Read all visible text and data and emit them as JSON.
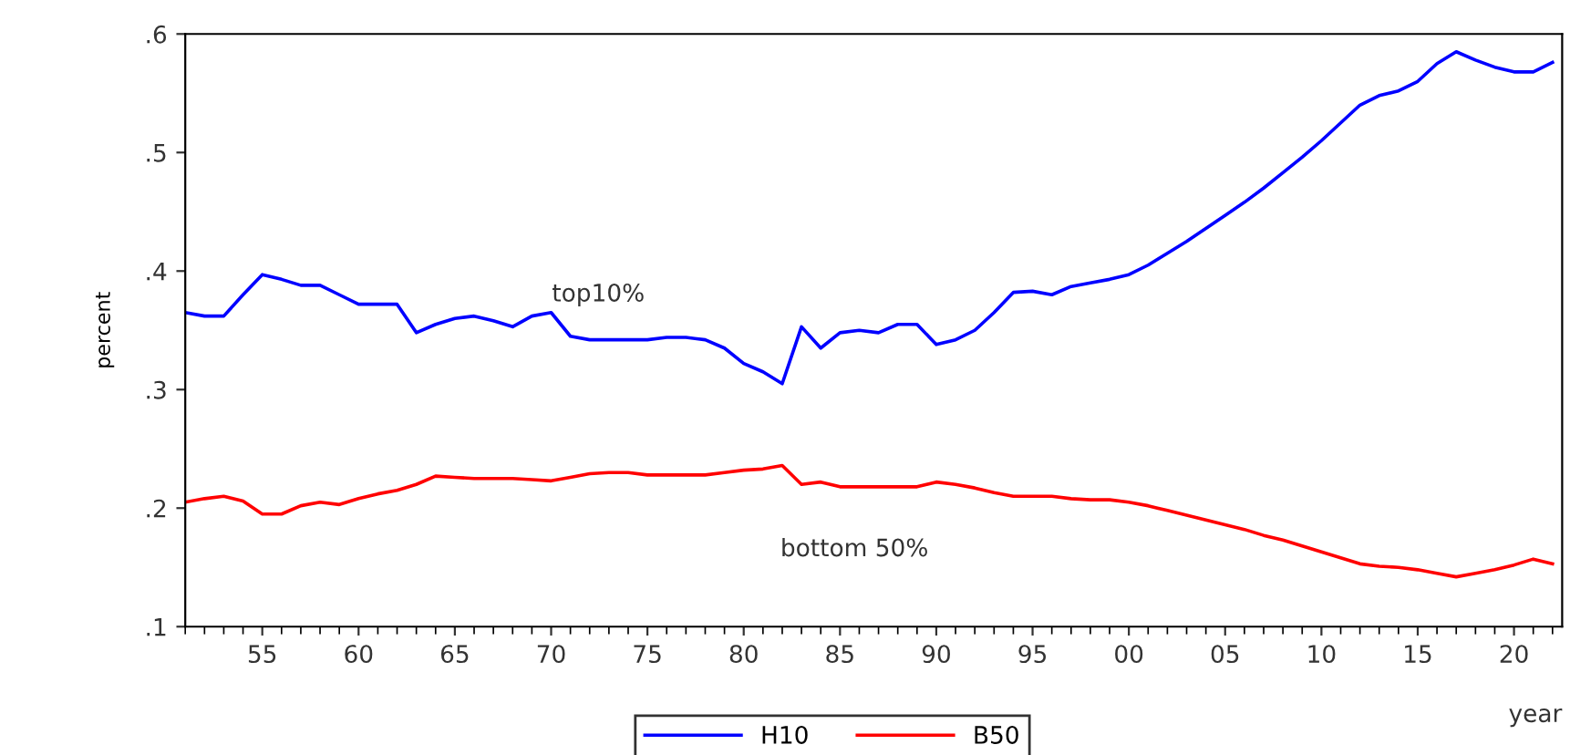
{
  "chart_data": {
    "type": "line",
    "xlabel": "year",
    "ylabel": "percent",
    "x": [
      1951,
      1952,
      1953,
      1954,
      1955,
      1956,
      1957,
      1958,
      1959,
      1960,
      1961,
      1962,
      1963,
      1964,
      1965,
      1966,
      1967,
      1968,
      1969,
      1970,
      1971,
      1972,
      1973,
      1974,
      1975,
      1976,
      1977,
      1978,
      1979,
      1980,
      1981,
      1982,
      1983,
      1984,
      1985,
      1986,
      1987,
      1988,
      1989,
      1990,
      1991,
      1992,
      1993,
      1994,
      1995,
      1996,
      1997,
      1998,
      1999,
      2000,
      2001,
      2002,
      2003,
      2004,
      2005,
      2006,
      2007,
      2008,
      2009,
      2010,
      2011,
      2012,
      2013,
      2014,
      2015,
      2016,
      2017,
      2018,
      2019,
      2020,
      2021,
      2022
    ],
    "series": [
      {
        "name": "H10",
        "color": "#0000ff",
        "values": [
          0.365,
          0.362,
          0.362,
          0.38,
          0.397,
          0.393,
          0.388,
          0.388,
          0.38,
          0.372,
          0.372,
          0.372,
          0.348,
          0.355,
          0.36,
          0.362,
          0.358,
          0.353,
          0.362,
          0.365,
          0.345,
          0.342,
          0.342,
          0.342,
          0.342,
          0.344,
          0.344,
          0.342,
          0.335,
          0.322,
          0.315,
          0.305,
          0.353,
          0.335,
          0.348,
          0.35,
          0.348,
          0.355,
          0.355,
          0.338,
          0.342,
          0.35,
          0.365,
          0.382,
          0.383,
          0.38,
          0.387,
          0.39,
          0.393,
          0.397,
          0.405,
          0.415,
          0.425,
          0.436,
          0.447,
          0.458,
          0.47,
          0.483,
          0.496,
          0.51,
          0.525,
          0.54,
          0.548,
          0.552,
          0.56,
          0.575,
          0.585,
          0.578,
          0.572,
          0.568,
          0.568,
          0.576
        ]
      },
      {
        "name": "B50",
        "color": "#ff0000",
        "values": [
          0.205,
          0.208,
          0.21,
          0.206,
          0.195,
          0.195,
          0.202,
          0.205,
          0.203,
          0.208,
          0.212,
          0.215,
          0.22,
          0.227,
          0.226,
          0.225,
          0.225,
          0.225,
          0.224,
          0.223,
          0.226,
          0.229,
          0.23,
          0.23,
          0.228,
          0.228,
          0.228,
          0.228,
          0.23,
          0.232,
          0.233,
          0.236,
          0.22,
          0.222,
          0.218,
          0.218,
          0.218,
          0.218,
          0.218,
          0.222,
          0.22,
          0.217,
          0.213,
          0.21,
          0.21,
          0.21,
          0.208,
          0.207,
          0.207,
          0.205,
          0.202,
          0.198,
          0.194,
          0.19,
          0.186,
          0.182,
          0.177,
          0.173,
          0.168,
          0.163,
          0.158,
          0.153,
          0.151,
          0.15,
          0.148,
          0.145,
          0.142,
          0.145,
          0.148,
          0.152,
          0.157,
          0.153
        ]
      }
    ],
    "annotations": [
      "top10%",
      "bottom 50%"
    ],
    "xlim": [
      1951,
      2022.5
    ],
    "xticks": [
      {
        "value": 1955,
        "label": "55"
      },
      {
        "value": 1960,
        "label": "60"
      },
      {
        "value": 1965,
        "label": "65"
      },
      {
        "value": 1970,
        "label": "70"
      },
      {
        "value": 1975,
        "label": "75"
      },
      {
        "value": 1980,
        "label": "80"
      },
      {
        "value": 1985,
        "label": "85"
      },
      {
        "value": 1990,
        "label": "90"
      },
      {
        "value": 1995,
        "label": "95"
      },
      {
        "value": 2000,
        "label": "00"
      },
      {
        "value": 2005,
        "label": "05"
      },
      {
        "value": 2010,
        "label": "10"
      },
      {
        "value": 2015,
        "label": "15"
      },
      {
        "value": 2020,
        "label": "20"
      }
    ],
    "ylim": [
      0.1,
      0.6
    ],
    "yticks": [
      {
        "value": 0.1,
        "label": ".1"
      },
      {
        "value": 0.2,
        "label": ".2"
      },
      {
        "value": 0.3,
        "label": ".3"
      },
      {
        "value": 0.4,
        "label": ".4"
      },
      {
        "value": 0.5,
        "label": ".5"
      },
      {
        "value": 0.6,
        "label": ".6"
      }
    ],
    "grid": false,
    "legend": "bottom",
    "marker": "none",
    "line_style": "solid"
  }
}
